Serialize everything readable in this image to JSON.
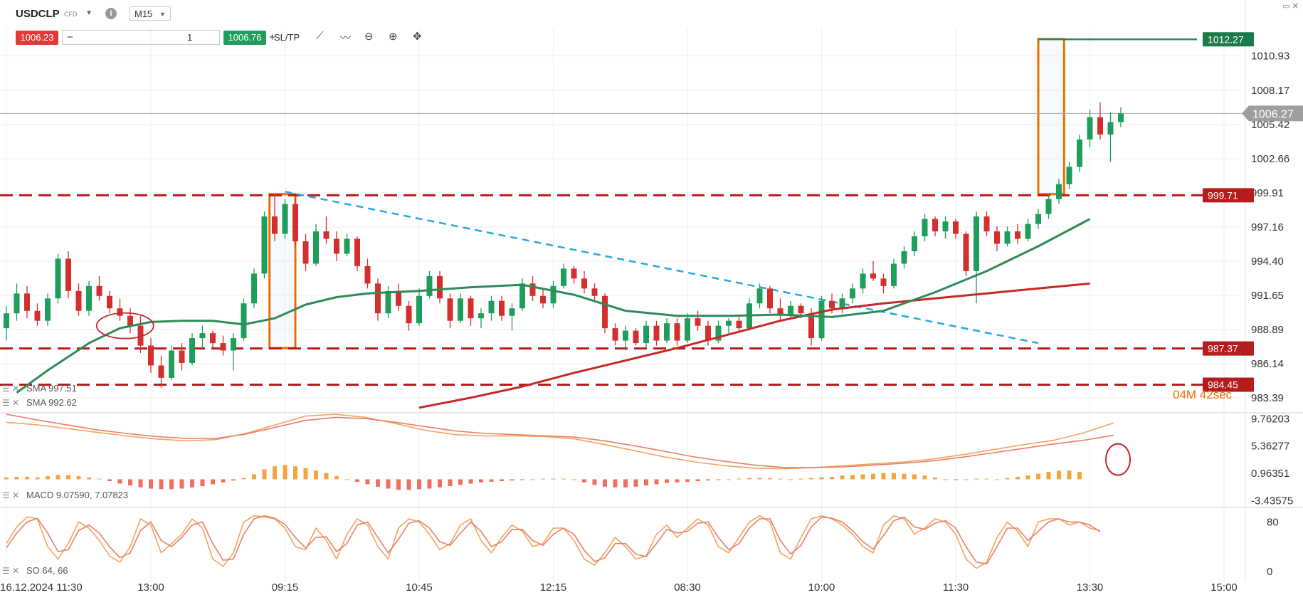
{
  "toolbar": {
    "symbol": "USDCLP",
    "instrument_type": "CFD",
    "timeframe": "M15",
    "bid": "1006.23",
    "quantity": "1",
    "ask": "1006.76",
    "sltp_label": "SL/TP",
    "icons": [
      "info-icon",
      "line-tool-icon",
      "drawing-tool-icon",
      "zoom-out-icon",
      "zoom-in-icon",
      "crosshair-icon"
    ]
  },
  "colors": {
    "bull": "#1e9e5a",
    "bear": "#d32f2f",
    "sma_fast": "#2e8b57",
    "sma_slow": "#c62828",
    "support_resistance": "#b71c1c",
    "trendline": "#29a8e0",
    "highlight_box": "#ef6c00",
    "macd_line": "#f5a35a",
    "signal_line": "#e8806a",
    "stoch_k": "#f5a35a",
    "stoch_d": "#e8806a"
  },
  "chart_data": [
    {
      "type": "candlestick",
      "name": "price",
      "y_ticks": [
        "1010.93",
        "1008.17",
        "1005.42",
        "1002.66",
        "999.91",
        "997.16",
        "994.40",
        "991.65",
        "988.89",
        "986.14",
        "983.39"
      ],
      "ylim": [
        982.3,
        1012.0
      ],
      "x_ticks": [
        "16.12.2024 11:30",
        "13:00",
        "09:15",
        "10:45",
        "12:15",
        "08:30",
        "10:00",
        "11:30",
        "13:30",
        "15:00"
      ],
      "x_tick_bar_index": [
        0,
        14,
        27,
        40,
        53,
        66,
        79,
        92,
        105,
        118
      ],
      "current_price": "1006.27",
      "countdown": "04M 42sec",
      "horizontal_levels": [
        {
          "label": "999.71",
          "value": 999.71
        },
        {
          "label": "987.37",
          "value": 987.37
        },
        {
          "label": "984.45",
          "value": 984.45
        }
      ],
      "target_level": {
        "label": "1012.27",
        "value": 1012.27
      },
      "trendline": [
        {
          "bar": 27,
          "value": 1000.0
        },
        {
          "bar": 100,
          "value": 987.8
        }
      ],
      "boxes": [
        {
          "bar_start": 25.5,
          "bar_end": 28.0,
          "top": 999.8,
          "bottom": 987.4
        },
        {
          "bar_start": 100.0,
          "bar_end": 102.5,
          "top": 1012.3,
          "bottom": 999.8
        }
      ],
      "ellipse_marker": {
        "bar": 11.5,
        "value": 989.2
      },
      "candles": [
        [
          989.0,
          990.8,
          988.0,
          990.2
        ],
        [
          990.2,
          992.6,
          989.6,
          991.8
        ],
        [
          991.8,
          992.4,
          989.8,
          990.4
        ],
        [
          990.4,
          991.0,
          989.2,
          989.6
        ],
        [
          989.6,
          991.8,
          989.2,
          991.4
        ],
        [
          991.4,
          995.0,
          991.0,
          994.6
        ],
        [
          994.6,
          995.2,
          991.4,
          992.0
        ],
        [
          992.0,
          992.6,
          990.0,
          990.4
        ],
        [
          990.4,
          992.8,
          990.0,
          992.4
        ],
        [
          992.4,
          993.2,
          991.2,
          991.6
        ],
        [
          991.6,
          992.0,
          990.2,
          990.6
        ],
        [
          990.6,
          991.4,
          989.6,
          990.0
        ],
        [
          990.0,
          990.6,
          988.6,
          989.2
        ],
        [
          989.2,
          990.0,
          987.0,
          987.6
        ],
        [
          987.6,
          988.2,
          985.4,
          986.0
        ],
        [
          986.0,
          986.8,
          984.2,
          985.0
        ],
        [
          985.0,
          987.6,
          984.8,
          987.2
        ],
        [
          987.2,
          987.8,
          985.6,
          986.2
        ],
        [
          986.2,
          988.6,
          986.0,
          988.2
        ],
        [
          988.2,
          989.2,
          987.4,
          988.6
        ],
        [
          988.6,
          988.8,
          987.4,
          987.8
        ],
        [
          987.8,
          988.4,
          986.8,
          987.2
        ],
        [
          987.2,
          988.6,
          985.6,
          988.2
        ],
        [
          988.2,
          991.4,
          988.0,
          991.0
        ],
        [
          991.0,
          993.8,
          990.6,
          993.4
        ],
        [
          993.4,
          998.4,
          993.0,
          998.0
        ],
        [
          998.0,
          999.8,
          996.0,
          996.6
        ],
        [
          996.6,
          999.4,
          996.2,
          999.0
        ],
        [
          999.0,
          999.5,
          995.6,
          996.0
        ],
        [
          996.0,
          996.6,
          993.6,
          994.2
        ],
        [
          994.2,
          997.4,
          994.0,
          996.8
        ],
        [
          996.8,
          998.0,
          995.8,
          996.2
        ],
        [
          996.2,
          996.8,
          994.4,
          995.0
        ],
        [
          995.0,
          996.6,
          994.8,
          996.2
        ],
        [
          996.2,
          996.4,
          993.6,
          994.0
        ],
        [
          994.0,
          994.6,
          992.2,
          992.6
        ],
        [
          992.6,
          993.0,
          989.6,
          990.2
        ],
        [
          990.2,
          992.4,
          989.8,
          992.0
        ],
        [
          992.0,
          992.6,
          990.4,
          990.8
        ],
        [
          990.8,
          991.2,
          988.8,
          989.4
        ],
        [
          989.4,
          992.2,
          989.2,
          991.6
        ],
        [
          991.6,
          993.6,
          991.4,
          993.2
        ],
        [
          993.2,
          993.6,
          991.0,
          991.4
        ],
        [
          991.4,
          991.8,
          989.0,
          989.6
        ],
        [
          989.6,
          991.8,
          989.4,
          991.4
        ],
        [
          991.4,
          991.6,
          989.2,
          989.8
        ],
        [
          989.8,
          990.6,
          989.0,
          990.2
        ],
        [
          990.2,
          991.6,
          989.6,
          991.2
        ],
        [
          991.2,
          991.6,
          989.6,
          990.0
        ],
        [
          990.0,
          991.0,
          988.8,
          990.6
        ],
        [
          990.6,
          993.0,
          990.4,
          992.6
        ],
        [
          992.6,
          993.2,
          991.2,
          991.6
        ],
        [
          991.6,
          992.2,
          990.6,
          991.0
        ],
        [
          991.0,
          992.8,
          990.6,
          992.4
        ],
        [
          992.4,
          994.2,
          992.2,
          993.8
        ],
        [
          993.8,
          994.0,
          992.6,
          993.0
        ],
        [
          993.0,
          993.6,
          991.8,
          992.2
        ],
        [
          992.2,
          992.6,
          991.2,
          991.6
        ],
        [
          991.6,
          991.8,
          988.6,
          989.0
        ],
        [
          989.0,
          989.4,
          987.6,
          988.0
        ],
        [
          988.0,
          989.2,
          987.2,
          988.8
        ],
        [
          988.8,
          989.0,
          987.6,
          987.8
        ],
        [
          987.8,
          989.6,
          987.4,
          989.2
        ],
        [
          989.2,
          989.6,
          987.6,
          988.0
        ],
        [
          988.0,
          989.8,
          987.8,
          989.4
        ],
        [
          989.4,
          989.8,
          987.6,
          988.0
        ],
        [
          988.0,
          990.2,
          987.8,
          989.8
        ],
        [
          989.8,
          990.4,
          988.8,
          989.2
        ],
        [
          989.2,
          989.6,
          987.6,
          988.0
        ],
        [
          988.0,
          989.6,
          987.8,
          989.2
        ],
        [
          989.2,
          989.8,
          988.6,
          989.6
        ],
        [
          989.6,
          990.0,
          988.8,
          989.0
        ],
        [
          989.0,
          991.4,
          988.8,
          991.0
        ],
        [
          991.0,
          992.6,
          990.6,
          992.2
        ],
        [
          992.2,
          992.4,
          990.2,
          990.6
        ],
        [
          990.6,
          991.4,
          989.6,
          990.0
        ],
        [
          990.0,
          991.2,
          989.8,
          990.8
        ],
        [
          990.8,
          991.0,
          989.8,
          990.2
        ],
        [
          990.2,
          990.6,
          987.6,
          988.2
        ],
        [
          988.2,
          991.6,
          988.0,
          991.2
        ],
        [
          991.2,
          991.8,
          990.2,
          990.6
        ],
        [
          990.6,
          991.8,
          990.2,
          991.4
        ],
        [
          991.4,
          992.6,
          991.0,
          992.2
        ],
        [
          992.2,
          993.8,
          991.8,
          993.4
        ],
        [
          993.4,
          994.4,
          992.8,
          993.0
        ],
        [
          993.0,
          993.4,
          991.8,
          992.4
        ],
        [
          992.4,
          994.6,
          992.2,
          994.2
        ],
        [
          994.2,
          995.6,
          993.8,
          995.2
        ],
        [
          995.2,
          996.8,
          994.8,
          996.4
        ],
        [
          996.4,
          998.2,
          996.0,
          997.8
        ],
        [
          997.8,
          998.0,
          996.4,
          996.8
        ],
        [
          996.8,
          998.0,
          996.2,
          997.6
        ],
        [
          997.6,
          997.8,
          996.2,
          996.6
        ],
        [
          996.6,
          996.8,
          993.2,
          993.6
        ],
        [
          993.6,
          998.4,
          991.0,
          998.0
        ],
        [
          998.0,
          998.4,
          996.4,
          996.8
        ],
        [
          996.8,
          997.2,
          995.2,
          995.8
        ],
        [
          995.8,
          997.2,
          995.6,
          996.8
        ],
        [
          996.8,
          997.4,
          995.8,
          996.2
        ],
        [
          996.2,
          997.8,
          996.0,
          997.4
        ],
        [
          997.4,
          998.6,
          997.0,
          998.2
        ],
        [
          998.2,
          999.8,
          997.8,
          999.4
        ],
        [
          999.4,
          1001.0,
          999.0,
          1000.6
        ],
        [
          1000.6,
          1002.4,
          1000.2,
          1002.0
        ],
        [
          1002.0,
          1004.6,
          1001.6,
          1004.2
        ],
        [
          1004.2,
          1006.6,
          1003.6,
          1006.0
        ],
        [
          1006.0,
          1007.2,
          1004.2,
          1004.6
        ],
        [
          1004.6,
          1006.4,
          1002.4,
          1005.6
        ],
        [
          1005.6,
          1006.8,
          1005.2,
          1006.3
        ]
      ]
    },
    {
      "type": "line",
      "name": "SMA 997.51",
      "legend": "SMA 997.51",
      "color_key": "sma_fast",
      "x_bar": [
        1,
        4,
        8,
        11,
        14,
        17,
        20,
        23,
        26,
        29,
        32,
        35,
        40,
        45,
        50,
        55,
        60,
        65,
        70,
        75,
        80,
        85,
        90,
        95,
        100,
        105
      ],
      "values": [
        983.8,
        985.6,
        987.8,
        989.0,
        989.5,
        989.6,
        989.6,
        989.3,
        989.8,
        990.9,
        991.5,
        991.8,
        992.0,
        992.3,
        992.5,
        991.7,
        990.4,
        990.0,
        990.0,
        990.1,
        989.9,
        990.4,
        991.9,
        993.6,
        995.6,
        997.8
      ]
    },
    {
      "type": "line",
      "name": "SMA 992.62",
      "legend": "SMA 992.62",
      "color_key": "sma_slow",
      "x_bar": [
        40,
        45,
        50,
        55,
        60,
        65,
        70,
        75,
        80,
        85,
        90,
        95,
        100,
        105
      ],
      "values": [
        982.6,
        983.4,
        984.3,
        985.4,
        986.4,
        987.4,
        988.5,
        989.6,
        990.5,
        991.0,
        991.4,
        991.8,
        992.2,
        992.6
      ]
    },
    {
      "type": "bar+line",
      "name": "MACD",
      "legend": "MACD 9.07590, 7.07823",
      "y_ticks": [
        "9.76203",
        "5.36277",
        "0.96351",
        "-3.43575"
      ],
      "ylim": [
        -4.2,
        10.5
      ],
      "histogram": [
        0.3,
        0.4,
        0.4,
        0.3,
        0.5,
        0.7,
        0.7,
        0.5,
        0.3,
        0.1,
        -0.3,
        -0.7,
        -1.0,
        -1.3,
        -1.5,
        -1.6,
        -1.6,
        -1.5,
        -1.3,
        -1.1,
        -0.8,
        -0.5,
        -0.2,
        0.2,
        0.8,
        1.6,
        2.1,
        2.3,
        2.1,
        1.8,
        1.4,
        1.0,
        0.5,
        0.0,
        -0.4,
        -0.8,
        -1.2,
        -1.5,
        -1.7,
        -1.7,
        -1.6,
        -1.5,
        -1.3,
        -1.1,
        -0.9,
        -0.7,
        -0.5,
        -0.4,
        -0.3,
        -0.2,
        -0.1,
        0.0,
        0.1,
        0.1,
        0.1,
        0.0,
        -0.5,
        -0.9,
        -1.2,
        -1.3,
        -1.3,
        -1.2,
        -1.0,
        -0.8,
        -0.6,
        -0.5,
        -0.4,
        -0.3,
        -0.2,
        -0.1,
        0.0,
        0.1,
        0.2,
        0.2,
        0.2,
        0.1,
        0.0,
        0.1,
        0.2,
        0.3,
        0.4,
        0.6,
        0.7,
        0.8,
        0.9,
        1.0,
        1.0,
        0.9,
        0.8,
        0.6,
        0.3,
        0.0,
        -0.1,
        0.0,
        0.1,
        0.1,
        0.0,
        0.2,
        0.4,
        0.6,
        0.9,
        1.2,
        1.4,
        1.4,
        1.2
      ],
      "macd_line": [
        9.2,
        8.8,
        8.2,
        7.6,
        7.0,
        6.5,
        6.2,
        6.4,
        7.4,
        8.8,
        10.2,
        10.5,
        10.0,
        9.0,
        7.9,
        7.2,
        7.0,
        7.0,
        6.9,
        6.5,
        5.6,
        4.6,
        3.6,
        2.8,
        2.2,
        1.8,
        1.7,
        1.9,
        2.2,
        2.5,
        2.8,
        3.3,
        4.0,
        4.8,
        5.6,
        6.3,
        7.5,
        9.1
      ],
      "signal_line": [
        10.5,
        9.6,
        8.8,
        8.0,
        7.4,
        6.9,
        6.6,
        6.6,
        7.3,
        8.4,
        9.5,
        10.0,
        9.8,
        9.2,
        8.5,
        7.8,
        7.4,
        7.2,
        7.0,
        6.8,
        6.2,
        5.4,
        4.5,
        3.6,
        2.9,
        2.3,
        1.9,
        1.9,
        2.0,
        2.3,
        2.6,
        3.0,
        3.6,
        4.3,
        5.0,
        5.7,
        6.3,
        7.1
      ]
    },
    {
      "type": "line",
      "name": "SO",
      "legend": "SO 64, 66",
      "y_ticks": [
        "80",
        "0"
      ],
      "ylim": [
        -6,
        100
      ],
      "k_line": [
        45,
        72,
        88,
        85,
        40,
        20,
        45,
        80,
        70,
        50,
        25,
        15,
        40,
        85,
        75,
        30,
        45,
        60,
        85,
        70,
        20,
        8,
        30,
        80,
        90,
        88,
        85,
        70,
        40,
        35,
        70,
        50,
        20,
        60,
        85,
        75,
        40,
        20,
        70,
        85,
        80,
        60,
        35,
        45,
        75,
        85,
        50,
        30,
        55,
        75,
        65,
        40,
        45,
        70,
        70,
        50,
        20,
        10,
        30,
        55,
        40,
        20,
        25,
        60,
        75,
        55,
        70,
        85,
        75,
        40,
        30,
        55,
        80,
        90,
        80,
        30,
        20,
        55,
        85,
        90,
        85,
        75,
        60,
        40,
        30,
        75,
        90,
        85,
        60,
        70,
        85,
        80,
        60,
        20,
        5,
        15,
        55,
        80,
        65,
        40,
        80,
        85,
        85,
        75,
        80,
        70,
        66
      ],
      "d_line": [
        38,
        62,
        80,
        86,
        62,
        32,
        35,
        66,
        75,
        62,
        40,
        22,
        30,
        66,
        80,
        50,
        40,
        55,
        75,
        80,
        45,
        18,
        20,
        60,
        85,
        90,
        86,
        76,
        55,
        38,
        55,
        56,
        32,
        45,
        75,
        80,
        55,
        30,
        52,
        78,
        82,
        70,
        48,
        42,
        62,
        80,
        65,
        40,
        48,
        68,
        68,
        50,
        42,
        60,
        70,
        60,
        34,
        16,
        22,
        45,
        45,
        28,
        24,
        45,
        68,
        62,
        65,
        78,
        80,
        55,
        35,
        45,
        70,
        85,
        85,
        50,
        28,
        42,
        72,
        88,
        86,
        80,
        66,
        48,
        36,
        58,
        82,
        88,
        72,
        68,
        78,
        82,
        70,
        40,
        15,
        12,
        40,
        70,
        70,
        50,
        65,
        80,
        85,
        80,
        80,
        75,
        64
      ]
    }
  ]
}
